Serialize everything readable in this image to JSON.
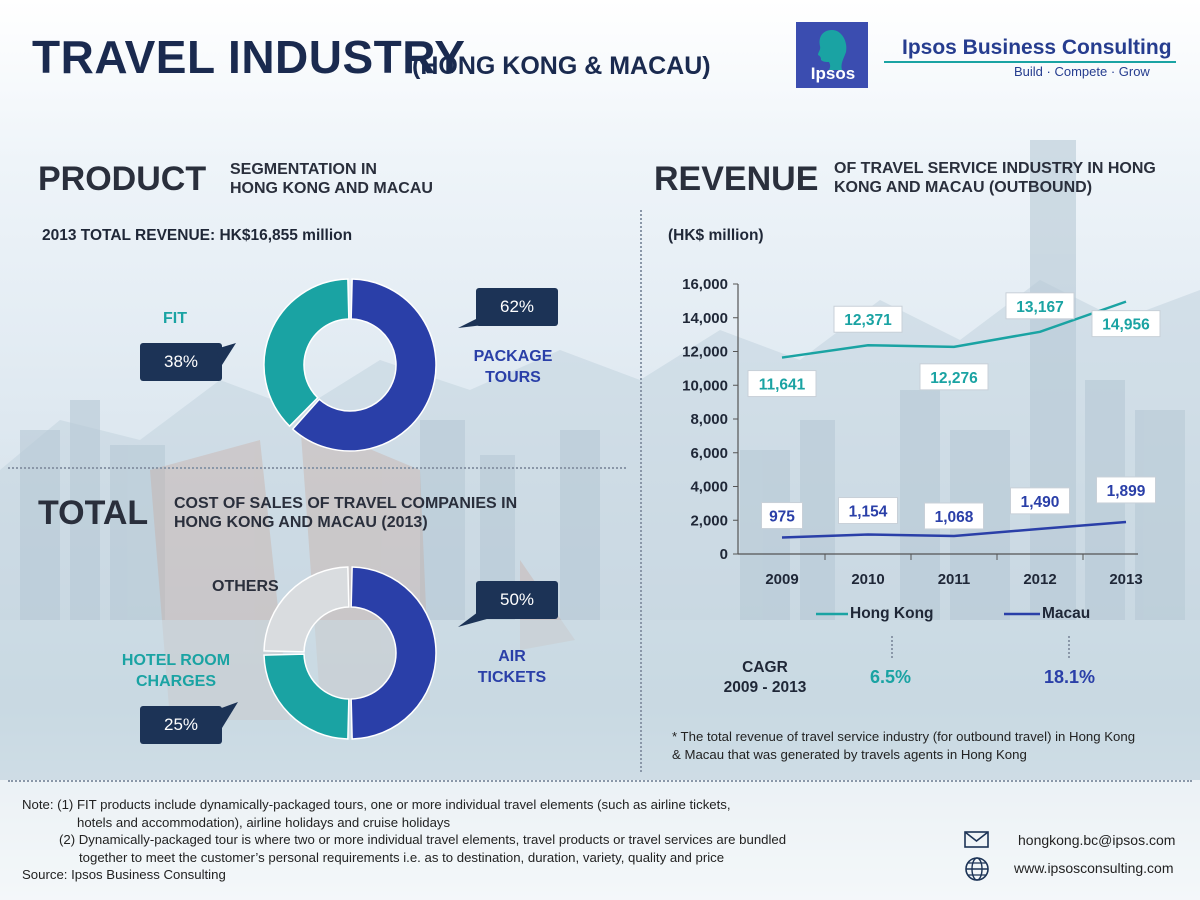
{
  "header": {
    "title": "TRAVEL INDUSTRY",
    "subtitle": "(HONG KONG & MACAU)",
    "logo_text": "Ipsos",
    "brand_name": "Ipsos Business Consulting",
    "brand_tagline": "Build · Compete · Grow"
  },
  "colors": {
    "navy": "#1c3356",
    "teal": "#1aa3a3",
    "blue": "#2a3fa8",
    "grey": "#d9dcdf"
  },
  "product": {
    "heading": "PRODUCT",
    "subheading_line1": "SEGMENTATION IN",
    "subheading_line2": "HONG KONG AND MACAU",
    "total_revenue": "2013 TOTAL REVENUE: HK$16,855 million",
    "fit_label": "FIT",
    "fit_pct": "38%",
    "package_label_line1": "PACKAGE",
    "package_label_line2": "TOURS",
    "package_pct": "62%"
  },
  "total": {
    "heading": "TOTAL",
    "subheading_line1": "COST OF SALES OF TRAVEL COMPANIES IN",
    "subheading_line2": "HONG KONG AND MACAU (2013)",
    "others_label": "OTHERS",
    "hotel_label_line1": "HOTEL ROOM",
    "hotel_label_line2": "CHARGES",
    "hotel_pct": "25%",
    "air_label_line1": "AIR",
    "air_label_line2": "TICKETS",
    "air_pct": "50%"
  },
  "revenue": {
    "heading": "REVENUE",
    "subheading_line1": "OF TRAVEL SERVICE INDUSTRY IN HONG",
    "subheading_line2": "KONG AND MACAU (OUTBOUND)",
    "unit_label": "(HK$ million)",
    "legend_hk": "Hong Kong",
    "legend_macau": "Macau",
    "cagr_label_line1": "CAGR",
    "cagr_label_line2": "2009 - 2013",
    "cagr_hk": "6.5%",
    "cagr_macau": "18.1%",
    "footnote_line1": "* The total revenue of travel service industry (for outbound travel) in Hong Kong",
    "footnote_line2": "& Macau that was generated by travels agents in Hong Kong"
  },
  "notes": {
    "line1": "Note: (1) FIT products include dynamically-packaged tours, one or more individual travel elements (such as airline tickets,",
    "line2": "hotels and accommodation), airline holidays and cruise holidays",
    "line3": "(2) Dynamically-packaged tour is where two or more individual travel elements, travel products or travel services are bundled",
    "line4": "together to meet the customer’s personal requirements i.e. as to destination, duration, variety, quality and price",
    "source": "Source: Ipsos Business Consulting"
  },
  "contact": {
    "email": "hongkong.bc@ipsos.com",
    "website": "www.ipsosconsulting.com",
    "email_icon": "envelope-icon",
    "web_icon": "globe-icon"
  },
  "chart_data": [
    {
      "type": "pie",
      "title": "PRODUCT SEGMENTATION IN HONG KONG AND MACAU",
      "categories": [
        "PACKAGE TOURS",
        "FIT"
      ],
      "values": [
        62,
        38
      ],
      "colors": [
        "#2a3fa8",
        "#1aa3a3"
      ]
    },
    {
      "type": "pie",
      "title": "TOTAL COST OF SALES OF TRAVEL COMPANIES IN HONG KONG AND MACAU (2013)",
      "categories": [
        "AIR TICKETS",
        "HOTEL ROOM CHARGES",
        "OTHERS"
      ],
      "values": [
        50,
        25,
        25
      ],
      "colors": [
        "#2a3fa8",
        "#1aa3a3",
        "#d9dcdf"
      ]
    },
    {
      "type": "line",
      "title": "REVENUE OF TRAVEL SERVICE INDUSTRY IN HONG KONG AND MACAU (OUTBOUND)",
      "ylabel": "(HK$ million)",
      "categories": [
        "2009",
        "2010",
        "2011",
        "2012",
        "2013"
      ],
      "series": [
        {
          "name": "Hong Kong",
          "values": [
            11641,
            12371,
            12276,
            13167,
            14956
          ],
          "labels": [
            "11,641",
            "12,371",
            "12,276",
            "13,167",
            "14,956"
          ],
          "color": "#1aa3a3"
        },
        {
          "name": "Macau",
          "values": [
            975,
            1154,
            1068,
            1490,
            1899
          ],
          "labels": [
            "975",
            "1,154",
            "1,068",
            "1,490",
            "1,899"
          ],
          "color": "#2a3fa8"
        }
      ],
      "ylim": [
        0,
        16000
      ],
      "yticks": [
        0,
        2000,
        4000,
        6000,
        8000,
        10000,
        12000,
        14000,
        16000
      ],
      "ytick_labels": [
        "0",
        "2,000",
        "4,000",
        "6,000",
        "8,000",
        "10,000",
        "12,000",
        "14,000",
        "16,000"
      ],
      "grid": false,
      "legend": "bottom"
    }
  ]
}
